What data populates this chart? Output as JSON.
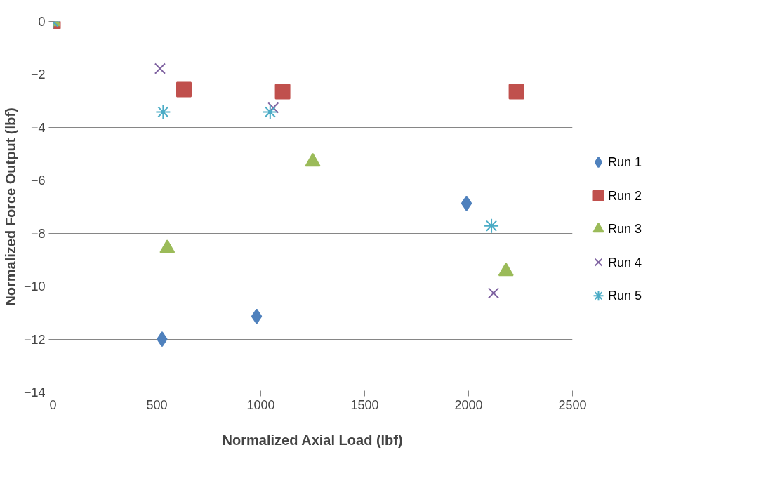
{
  "chart_data": {
    "type": "scatter",
    "xlabel": "Normalized Axial Load (lbf)",
    "ylabel": "Normalized Force Output (lbf)",
    "xlim": [
      0,
      2500
    ],
    "xticks": [
      0,
      500,
      1000,
      1500,
      2000,
      2500
    ],
    "ylim": [
      -14,
      0
    ],
    "yticks": [
      -14,
      -12,
      -10,
      -8,
      -6,
      -4,
      -2,
      0
    ],
    "grid": "y",
    "legend": "right",
    "series": [
      {
        "name": "Run 1",
        "color": "#4f81bd",
        "marker": "diamond",
        "x": [
          525,
          980,
          1990
        ],
        "values": [
          -12.0,
          -11.14,
          -6.87
        ]
      },
      {
        "name": "Run 2",
        "color": "#c0504d",
        "marker": "square",
        "x": [
          0,
          630,
          1105,
          2230
        ],
        "values": [
          0,
          -2.57,
          -2.65,
          -2.65
        ]
      },
      {
        "name": "Run 3",
        "color": "#9bbb59",
        "marker": "triangle",
        "x": [
          0,
          550,
          1250,
          2180
        ],
        "values": [
          0,
          -8.57,
          -5.3,
          -9.44
        ]
      },
      {
        "name": "Run 4",
        "color": "#8064a2",
        "marker": "cross",
        "x": [
          0,
          515,
          1060,
          2120
        ],
        "values": [
          0,
          -1.78,
          -3.26,
          -10.26
        ]
      },
      {
        "name": "Run 5",
        "color": "#4bacc6",
        "x": [
          0,
          530,
          1045,
          2110
        ],
        "values": [
          0,
          -3.42,
          -3.42,
          -7.72
        ]
      }
    ]
  }
}
